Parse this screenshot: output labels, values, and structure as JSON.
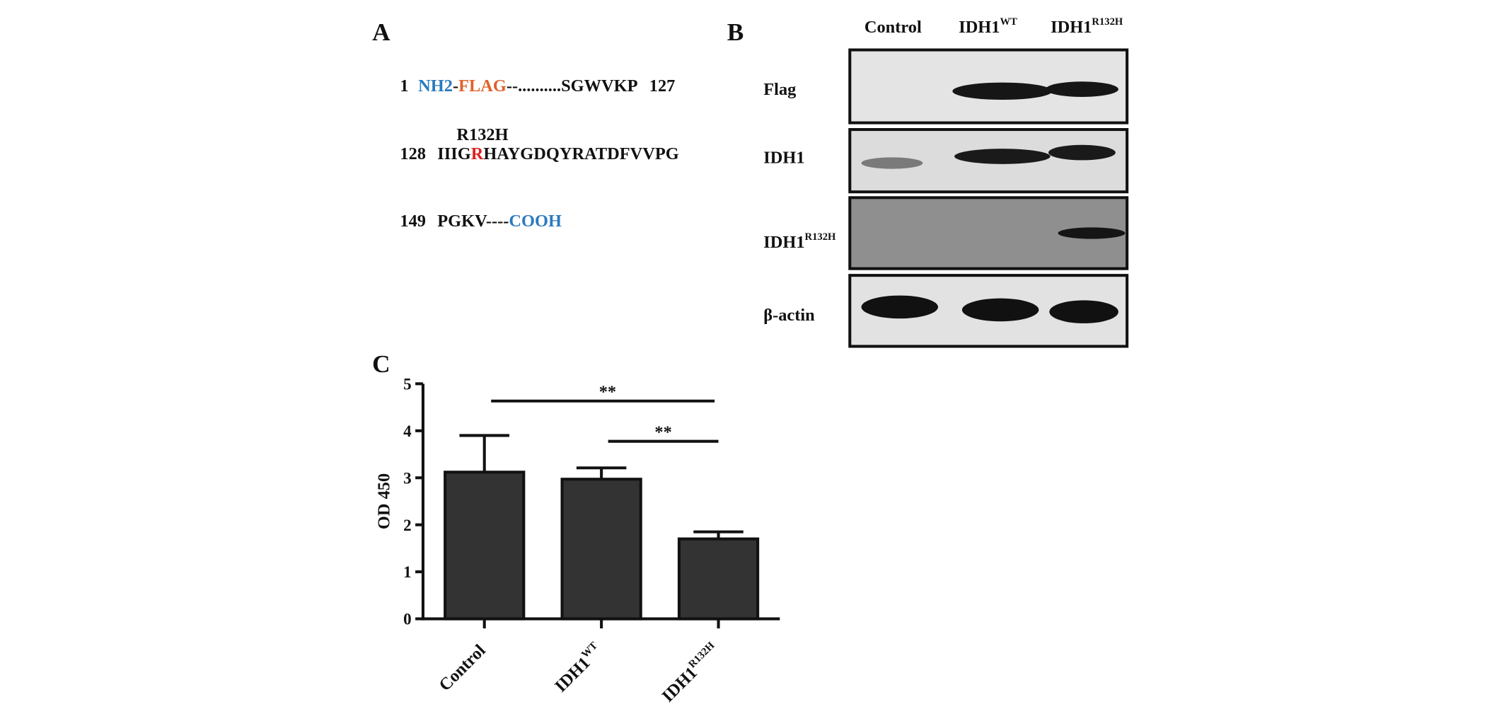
{
  "panel_a": {
    "label": "A",
    "lines": [
      {
        "start": 1,
        "segments": [
          {
            "text": "NH2",
            "color": "#2a7ac0"
          },
          {
            "text": "-",
            "color": "#111111"
          },
          {
            "text": "FLAG",
            "color": "#e0602a"
          },
          {
            "text": "--..........SGWVKP",
            "color": "#111111"
          }
        ],
        "end": 127
      },
      {
        "start": 128,
        "annotation": {
          "text": "R132H",
          "color": "#e02020"
        },
        "segments": [
          {
            "text": "IIIG",
            "color": "#111111"
          },
          {
            "text": "R",
            "color": "#e02020"
          },
          {
            "text": "HAYGDQYRATDFVVPG",
            "color": "#111111"
          }
        ]
      },
      {
        "start": 149,
        "segments": [
          {
            "text": "PGKV----",
            "color": "#111111"
          },
          {
            "text": "COOH",
            "color": "#2a7ac0"
          }
        ]
      }
    ]
  },
  "panel_b": {
    "label": "B",
    "columns": [
      {
        "text": "Control"
      },
      {
        "text": "IDH1",
        "sup": "WT"
      },
      {
        "text": "IDH1",
        "sup": "R132H"
      }
    ],
    "rows": [
      {
        "text": "Flag"
      },
      {
        "text": "IDH1"
      },
      {
        "text": "IDH1",
        "sup": "R132H"
      },
      {
        "text": "β-actin"
      }
    ]
  },
  "chart_data": {
    "type": "bar",
    "panel_label": "C",
    "ylabel": "OD 450",
    "categories": [
      "Control",
      "IDH1",
      "IDH1"
    ],
    "category_superscripts": [
      null,
      "WT",
      "R132H"
    ],
    "values": [
      3.12,
      2.97,
      1.7
    ],
    "errors": [
      0.78,
      0.24,
      0.15
    ],
    "color": "#333333",
    "ylim": [
      0,
      5
    ],
    "yticks": [
      0,
      1,
      2,
      3,
      4,
      5
    ],
    "significance": [
      {
        "text": "**",
        "from": 0,
        "to": 2
      },
      {
        "text": "**",
        "from": 1,
        "to": 2
      }
    ]
  }
}
